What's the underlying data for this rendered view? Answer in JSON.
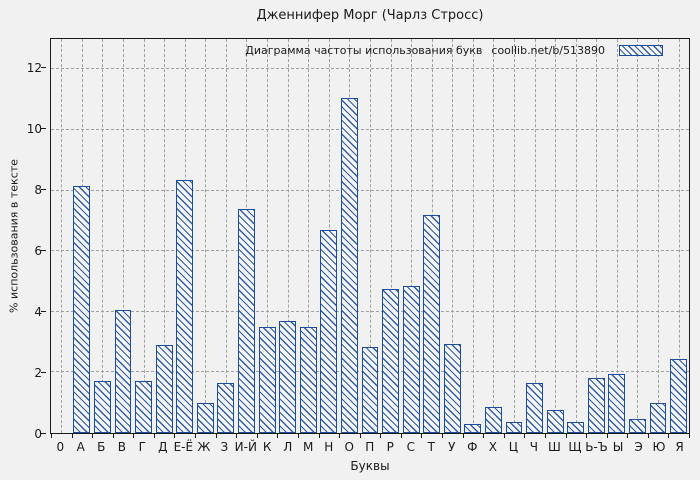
{
  "title": "Дженнифер Морг (Чарлз Стросс)",
  "legend": {
    "label": "Диаграмма частоты использования букв",
    "source": "coollib.net/b/513890"
  },
  "axes": {
    "x_title": "Буквы",
    "y_title": "% использования в тексте",
    "origin_label": "0"
  },
  "chart_data": {
    "type": "bar",
    "title": "Дженнифер Морг (Чарлз Стросс)",
    "legend_entry": "Диаграмма частоты использования букв  coollib.net/b/513890",
    "xlabel": "Буквы",
    "ylabel": "% использования в тексте",
    "ylim": [
      0,
      13
    ],
    "yticks": [
      0,
      2,
      4,
      6,
      8,
      10,
      12
    ],
    "grid": true,
    "legend_position": "top-right-inside",
    "categories": [
      "А",
      "Б",
      "В",
      "Г",
      "Д",
      "Е-Ё",
      "Ж",
      "З",
      "И-Й",
      "К",
      "Л",
      "М",
      "Н",
      "О",
      "П",
      "Р",
      "С",
      "Т",
      "У",
      "Ф",
      "Х",
      "Ц",
      "Ч",
      "Ш",
      "Щ",
      "Ь-Ъ",
      "Ы",
      "Э",
      "Ю",
      "Я"
    ],
    "values": [
      8.15,
      1.7,
      4.05,
      1.7,
      2.9,
      8.35,
      1.0,
      1.65,
      7.4,
      3.5,
      3.7,
      3.5,
      6.7,
      11.05,
      2.85,
      4.75,
      4.85,
      7.2,
      2.95,
      0.3,
      0.85,
      0.35,
      1.65,
      0.75,
      0.35,
      1.8,
      1.95,
      0.45,
      1.0,
      2.45
    ],
    "colors": {
      "bar_border": "#1c4c9e",
      "hatch": "#2e5ca6",
      "grid": "#a0a0a0",
      "background": "#f1f1f1"
    }
  }
}
